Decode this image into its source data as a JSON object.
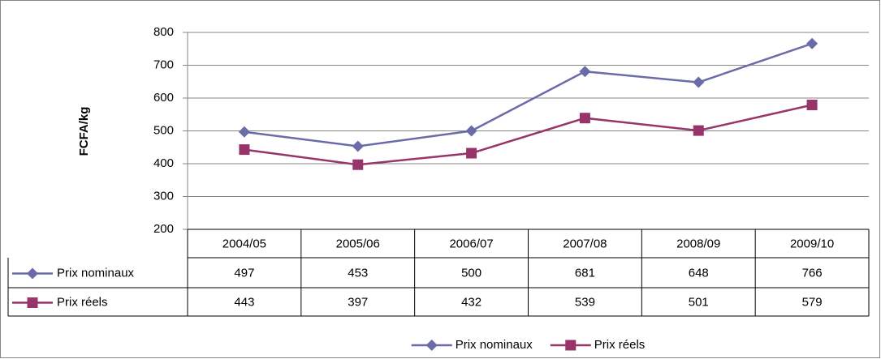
{
  "chart_data": {
    "type": "line",
    "y_label": "FCFA/kg",
    "categories": [
      "2004/05",
      "2005/06",
      "2006/07",
      "2007/08",
      "2008/09",
      "2009/10"
    ],
    "series": [
      {
        "name": "Prix nominaux",
        "color": "#6b6ba9",
        "marker": "diamond",
        "values": [
          497,
          453,
          500,
          681,
          648,
          766
        ]
      },
      {
        "name": "Prix réels",
        "color": "#973468",
        "marker": "square",
        "values": [
          443,
          397,
          432,
          539,
          501,
          579
        ]
      }
    ],
    "ylim": [
      200,
      800
    ],
    "yticks": [
      200,
      300,
      400,
      500,
      600,
      700,
      800
    ],
    "grid": true,
    "legend": "bottom",
    "data_table": true
  }
}
